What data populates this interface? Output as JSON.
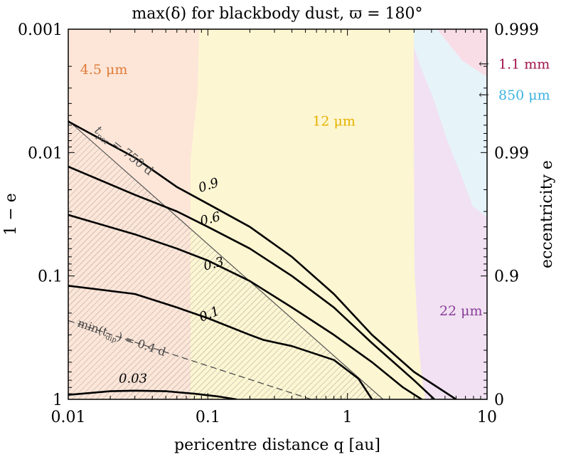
{
  "chart_data": {
    "type": "contour",
    "title": "max(δ) for blackbody dust, ϖ = 180°",
    "xlabel": "pericentre distance q [au]",
    "ylabel_left": "1 − e",
    "ylabel_right": "eccentricity e",
    "x_scale": "log",
    "xlim": [
      0.01,
      10
    ],
    "y_scale": "log",
    "ylim": [
      0.001,
      1
    ],
    "x_ticks": [
      {
        "value": 0.01,
        "label": "0.01"
      },
      {
        "value": 0.1,
        "label": "0.1"
      },
      {
        "value": 1,
        "label": "1"
      },
      {
        "value": 10,
        "label": "10"
      }
    ],
    "y_ticks_left": [
      {
        "value": 0.001,
        "label": "0.001"
      },
      {
        "value": 0.01,
        "label": "0.01"
      },
      {
        "value": 0.1,
        "label": "0.1"
      },
      {
        "value": 1,
        "label": "1"
      }
    ],
    "y_ticks_right": [
      {
        "value": 0.001,
        "label": "0.999"
      },
      {
        "value": 0.01,
        "label": "0.99"
      },
      {
        "value": 0.1,
        "label": "0.9"
      },
      {
        "value": 1,
        "label": "0"
      }
    ],
    "regions": [
      {
        "name": "4.5 μm",
        "color": "#fde6d8",
        "label_color": "#e07b39",
        "label_at": [
          0.018,
          0.0021
        ]
      },
      {
        "name": "12 μm",
        "color": "#fdf6d2",
        "label_color": "#e6b200",
        "label_at": [
          0.8,
          0.0055
        ]
      },
      {
        "name": "22 μm",
        "color": "#f1e1f2",
        "label_color": "#8a3d99",
        "label_at": [
          6.5,
          0.19
        ]
      },
      {
        "name": "850 μm",
        "color": "#e6f3f9",
        "label_color": "#3cb3e0",
        "label_at": [
          15,
          0.0034
        ]
      },
      {
        "name": "1.1 mm",
        "color": "#f8dde7",
        "label_color": "#a0164d",
        "label_at": [
          15,
          0.0019
        ]
      }
    ],
    "hatched_region": {
      "description": "t_per > 750 d",
      "hatch_color": "#8c8c8c"
    },
    "t_per_line": {
      "label": "t",
      "subscript": "per",
      "label_suffix": " = 750 d",
      "points": [
        [
          0.01,
          0.0055
        ],
        [
          1.8,
          1.0
        ]
      ]
    },
    "t_dip_line": {
      "label": "min(t",
      "subscript": "dip",
      "label_suffix": ") = 0.4 d",
      "points": [
        [
          0.01,
          0.23
        ],
        [
          0.55,
          1.0
        ]
      ]
    },
    "contours": [
      {
        "level": "0.9",
        "points": [
          [
            0.01,
            0.0056
          ],
          [
            0.03,
            0.011
          ],
          [
            0.06,
            0.019
          ],
          [
            0.1,
            0.026
          ],
          [
            0.2,
            0.04
          ],
          [
            0.4,
            0.07
          ],
          [
            0.8,
            0.14
          ],
          [
            1.5,
            0.3
          ],
          [
            3.0,
            0.6
          ],
          [
            6.0,
            1.0
          ]
        ]
      },
      {
        "level": "0.6",
        "points": [
          [
            0.01,
            0.013
          ],
          [
            0.03,
            0.022
          ],
          [
            0.06,
            0.03
          ],
          [
            0.1,
            0.04
          ],
          [
            0.2,
            0.06
          ],
          [
            0.4,
            0.1
          ],
          [
            0.8,
            0.18
          ],
          [
            1.5,
            0.35
          ],
          [
            3.0,
            0.7
          ],
          [
            4.2,
            1.0
          ]
        ]
      },
      {
        "level": "0.3",
        "points": [
          [
            0.01,
            0.032
          ],
          [
            0.03,
            0.046
          ],
          [
            0.06,
            0.06
          ],
          [
            0.1,
            0.075
          ],
          [
            0.2,
            0.11
          ],
          [
            0.4,
            0.18
          ],
          [
            0.8,
            0.3
          ],
          [
            1.5,
            0.5
          ],
          [
            2.5,
            0.8
          ],
          [
            3.4,
            1.0
          ]
        ]
      },
      {
        "level": "0.1",
        "points": [
          [
            0.01,
            0.12
          ],
          [
            0.03,
            0.14
          ],
          [
            0.06,
            0.18
          ],
          [
            0.1,
            0.22
          ],
          [
            0.2,
            0.3
          ],
          [
            0.25,
            0.33
          ],
          [
            0.4,
            0.37
          ],
          [
            0.8,
            0.48
          ],
          [
            1.2,
            0.68
          ],
          [
            1.5,
            1.0
          ]
        ]
      },
      {
        "level": "0.03",
        "points": [
          [
            0.01,
            0.92
          ],
          [
            0.02,
            0.86
          ],
          [
            0.03,
            0.85
          ],
          [
            0.05,
            0.86
          ],
          [
            0.08,
            0.9
          ],
          [
            0.12,
            0.95
          ],
          [
            0.16,
            1.0
          ]
        ]
      }
    ],
    "contour_labels": [
      {
        "text": "0.9",
        "at": [
          0.088,
          0.021
        ],
        "angle": -18
      },
      {
        "text": "0.6",
        "at": [
          0.09,
          0.039
        ],
        "angle": -15
      },
      {
        "text": "0.3",
        "at": [
          0.095,
          0.09
        ],
        "angle": -14
      },
      {
        "text": "0.1",
        "at": [
          0.09,
          0.235
        ],
        "angle": -22
      },
      {
        "text": "0.03",
        "at": [
          0.023,
          0.73
        ],
        "angle": 0
      }
    ],
    "arrow_markers": [
      "←",
      "←"
    ]
  }
}
